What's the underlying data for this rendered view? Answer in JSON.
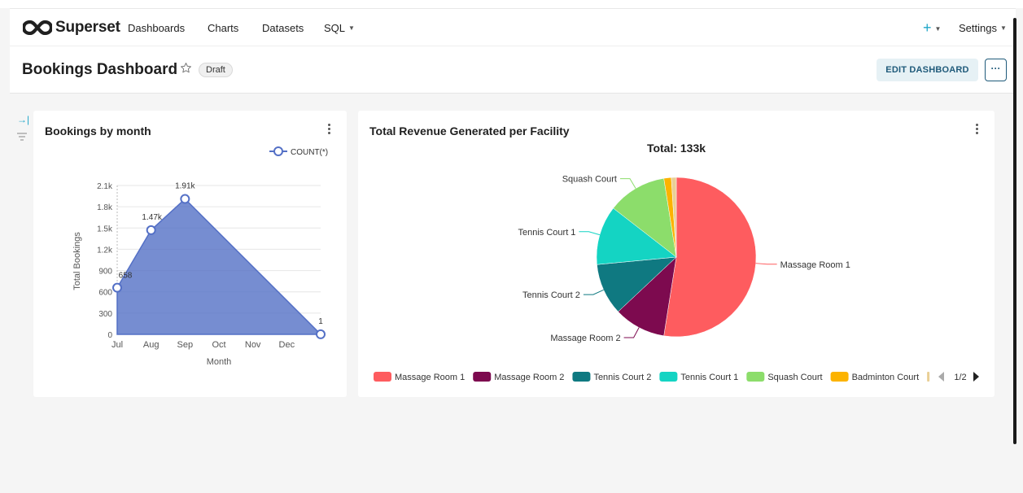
{
  "navbar": {
    "brand": "Superset",
    "items": [
      {
        "label": "Dashboards"
      },
      {
        "label": "Charts"
      },
      {
        "label": "Datasets"
      },
      {
        "label": "SQL"
      }
    ],
    "plus_label": "+",
    "settings_label": "Settings"
  },
  "dashboard": {
    "title": "Bookings Dashboard",
    "status_badge": "Draft",
    "edit_button": "EDIT DASHBOARD",
    "more_button": "···"
  },
  "colors": {
    "accent": "#20a7c9",
    "area_fill": "#5470c6"
  },
  "chart_data": [
    {
      "type": "area",
      "title": "Bookings by month",
      "legend": [
        "COUNT(*)"
      ],
      "xlabel": "Month",
      "ylabel": "Total Bookings",
      "x_ticks": [
        "Jul",
        "Aug",
        "Sep",
        "Oct",
        "Nov",
        "Dec"
      ],
      "y_ticks": [
        "0",
        "300",
        "600",
        "900",
        "1.2k",
        "1.5k",
        "1.8k",
        "2.1k"
      ],
      "ylim": [
        0,
        2100
      ],
      "xlim": [
        7,
        13
      ],
      "points": [
        {
          "x": 7,
          "y": 658,
          "label": "658"
        },
        {
          "x": 8,
          "y": 1470,
          "label": "1.47k"
        },
        {
          "x": 9,
          "y": 1910,
          "label": "1.91k"
        },
        {
          "x": 13,
          "y": 1,
          "label": "1"
        }
      ]
    },
    {
      "type": "pie",
      "title": "Total Revenue Generated per Facility",
      "subtitle": "Total: 133k",
      "slices": [
        {
          "name": "Massage Room 1",
          "value": 52.5,
          "color": "#fe5c5f"
        },
        {
          "name": "Massage Room 2",
          "value": 10.5,
          "color": "#7d0a4f"
        },
        {
          "name": "Tennis Court 2",
          "value": 10.5,
          "color": "#0f7981"
        },
        {
          "name": "Tennis Court 1",
          "value": 12,
          "color": "#14d4c3"
        },
        {
          "name": "Squash Court",
          "value": 12,
          "color": "#8cdd6b"
        },
        {
          "name": "Badminton Court",
          "value": 1.5,
          "color": "#fcb300"
        },
        {
          "name": "",
          "value": 1.0,
          "color": "#e9cf95"
        }
      ],
      "legend_page": "1/2"
    }
  ]
}
